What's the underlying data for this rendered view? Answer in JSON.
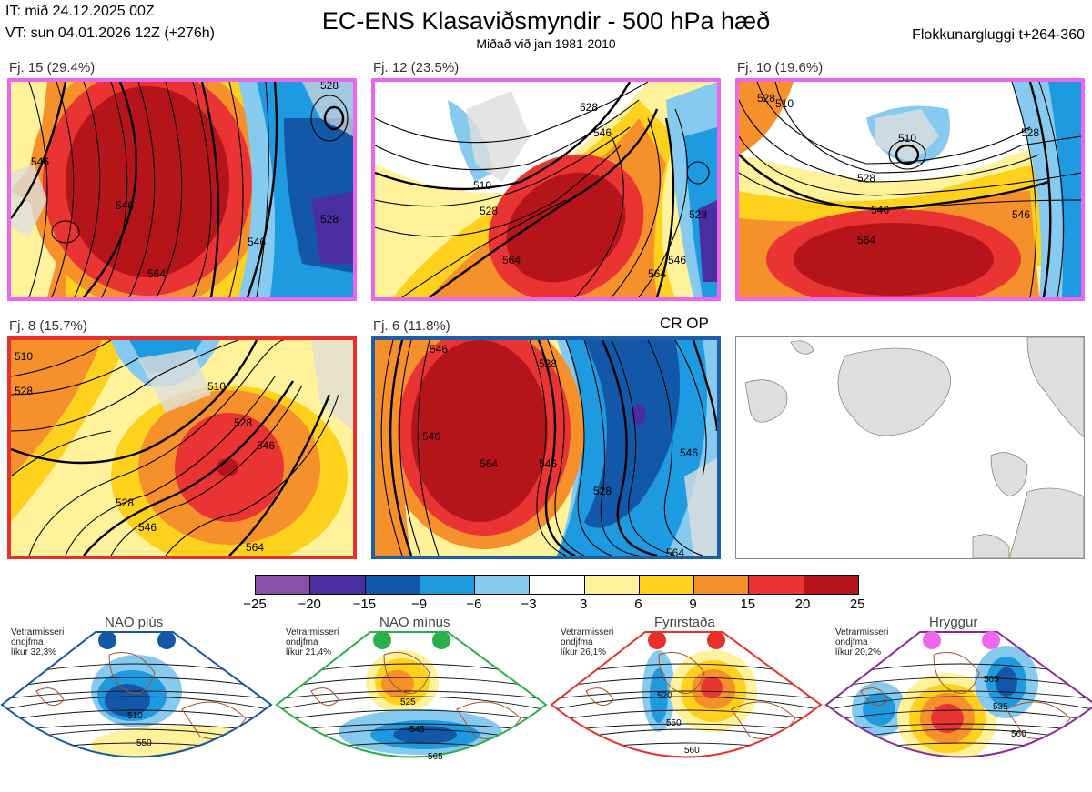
{
  "header": {
    "it": "IT: mið 24.12.2025 00Z",
    "vt": "VT: sun 04.01.2026 12Z  (+276h)",
    "title": "EC-ENS Klasaviðsmyndir - 500 hPa hæð",
    "subtitle": "Miðað við jan 1981-2010",
    "window": "Flokkunargluggi t+264-360"
  },
  "clusters": [
    {
      "label": "Fj. 15 (29.4%)",
      "border": "#ee66ee",
      "contours": [
        "546",
        "528",
        "546",
        "564",
        "528",
        "546"
      ]
    },
    {
      "label": "Fj. 12 (23.5%)",
      "border": "#ee66ee",
      "contours": [
        "528",
        "546",
        "510",
        "528",
        "564",
        "546",
        "528",
        "564"
      ]
    },
    {
      "label": "Fj. 10 (19.6%)",
      "border": "#ee66ee",
      "contours": [
        "528",
        "510",
        "510",
        "528",
        "546",
        "564",
        "546",
        "528"
      ]
    },
    {
      "label": "Fj. 8 (15.7%)",
      "border": "#e8302a",
      "contours": [
        "510",
        "528",
        "510",
        "528",
        "546",
        "528",
        "546",
        "564"
      ]
    },
    {
      "label": "Fj. 6 (11.8%)",
      "border": "#1c5fa8",
      "contours": [
        "546",
        "528",
        "546",
        "564",
        "546",
        "528",
        "546",
        "564"
      ]
    }
  ],
  "crop_label": "CR OP",
  "colorbar": {
    "colors": [
      "#8a4fa6",
      "#4a2fa0",
      "#1358a8",
      "#1e9ae0",
      "#86cbef",
      "#ffffff",
      "#fff29a",
      "#fed21c",
      "#f6902a",
      "#ea3434",
      "#b4141a"
    ],
    "ticks": [
      "−25",
      "−20",
      "−15",
      "−9",
      "−6",
      "−3",
      "3",
      "6",
      "9",
      "15",
      "20",
      "25"
    ]
  },
  "regimes": [
    {
      "name": "NAO plús",
      "text": [
        "Vetrarmisseri",
        "ondjfma",
        "líkur 32,3%"
      ],
      "dot": "#1358a8",
      "edge": "#1358a8",
      "contours": [
        "510",
        "550"
      ]
    },
    {
      "name": "NAO mínus",
      "text": [
        "Vetrarmisseri",
        "ondjfma",
        "líkur 21,4%"
      ],
      "dot": "#2ab04a",
      "edge": "#2ab04a",
      "contours": [
        "525",
        "545",
        "565"
      ]
    },
    {
      "name": "Fyrirstaða",
      "text": [
        "Vetrarmisseri",
        "ondjfma",
        "líkur 26,1%"
      ],
      "dot": "#e8302a",
      "edge": "#e8302a",
      "contours": [
        "520",
        "550",
        "560"
      ]
    },
    {
      "name": "Hryggur",
      "text": [
        "Vetrarmisseri",
        "ondjfma",
        "líkur 20,2%"
      ],
      "dot": "#ee66ee",
      "edge": "#8a2a9a",
      "contours": [
        "505",
        "535",
        "560"
      ]
    }
  ]
}
